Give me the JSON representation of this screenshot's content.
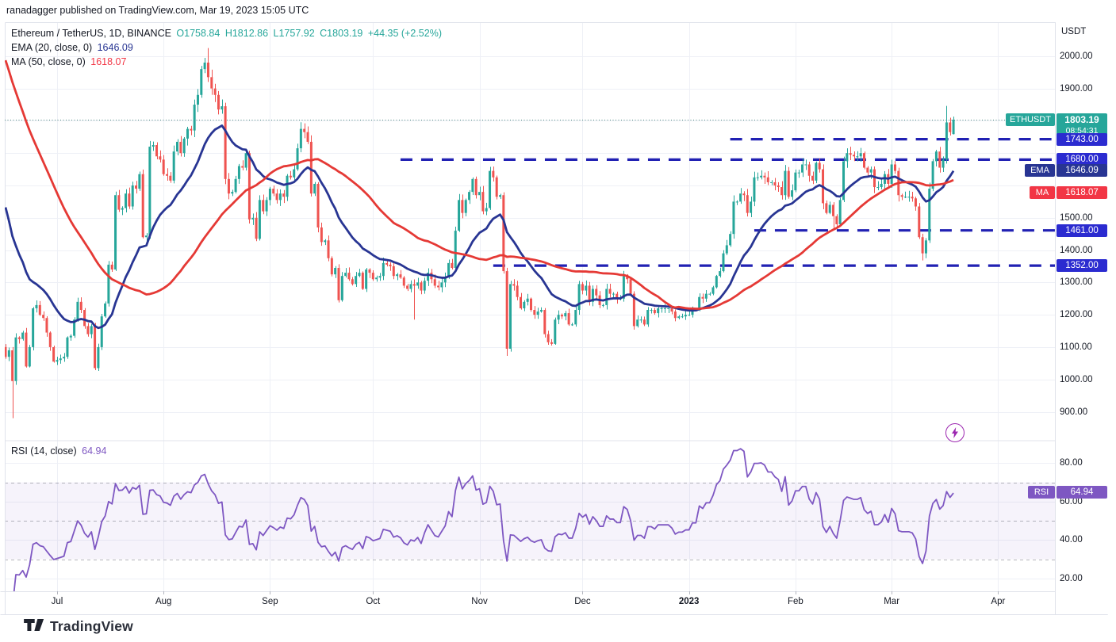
{
  "attribution": "ranadagger published on TradingView.com, Mar 19, 2023 15:05 UTC",
  "watermark": "TradingView",
  "axis": {
    "currency": "USDT"
  },
  "legend": {
    "symbol": "Ethereum / TetherUS, 1D, BINANCE",
    "open": "O1758.84",
    "high": "H1812.86",
    "low": "L1757.92",
    "close": "C1803.19",
    "change": "+44.35 (+2.52%)",
    "ema_label": "EMA (20, close, 0)",
    "ema_value": "1646.09",
    "ma_label": "MA (50, close, 0)",
    "ma_value": "1618.07",
    "rsi_label": "RSI (14, close)",
    "rsi_value": "64.94"
  },
  "badges": {
    "symbol_tag": "ETHUSDT",
    "last_price": "1803.19",
    "countdown": "08:54:31",
    "levels": [
      "1743.00",
      "1680.00",
      "1461.00",
      "1352.00"
    ],
    "ema_tag": "EMA",
    "ema_value": "1646.09",
    "ma_tag": "MA",
    "ma_value": "1618.07",
    "rsi_tag": "RSI",
    "rsi_value": "64.94"
  },
  "chart_data": {
    "type": "candlestick",
    "title": "Ethereum / TetherUS, 1D, BINANCE",
    "interval": "1D",
    "quote_currency": "USDT",
    "last_bar": {
      "open": 1758.84,
      "high": 1812.86,
      "low": 1757.92,
      "close": 1803.19,
      "change": 44.35,
      "change_pct": 2.52
    },
    "indicators": {
      "ema20": 1646.09,
      "ma50": 1618.07,
      "rsi14": 64.94
    },
    "price_line": 1803.19,
    "ylim_price": [
      813,
      2105
    ],
    "price_ticks_labeled": [
      2000,
      1900,
      1500,
      1400,
      1300,
      1200,
      1100,
      1000,
      900
    ],
    "price_grid": [
      900,
      1000,
      1100,
      1200,
      1300,
      1400,
      1500,
      1600,
      1700,
      1800,
      1900,
      2000
    ],
    "ylim_rsi": [
      13.3,
      91.7
    ],
    "rsi_ticks": [
      80,
      60,
      40,
      20
    ],
    "rsi_dashed_levels": [
      70,
      50,
      30
    ],
    "rsi_band": [
      30,
      70
    ],
    "levels": [
      {
        "label": "1743.00",
        "price": 1743.0,
        "from_day": 211
      },
      {
        "label": "1680.00",
        "price": 1680.0,
        "from_day": 115
      },
      {
        "label": "1461.00",
        "price": 1461.0,
        "from_day": 218
      },
      {
        "label": "1352.00",
        "price": 1352.0,
        "from_day": 142
      }
    ],
    "time_labels": [
      {
        "label": "Jul",
        "day": 15
      },
      {
        "label": "Aug",
        "day": 46
      },
      {
        "label": "Sep",
        "day": 77
      },
      {
        "label": "Oct",
        "day": 107
      },
      {
        "label": "Nov",
        "day": 138
      },
      {
        "label": "Dec",
        "day": 168
      },
      {
        "label": "2023",
        "day": 199,
        "bold": true
      },
      {
        "label": "Feb",
        "day": 230
      },
      {
        "label": "Mar",
        "day": 258
      },
      {
        "label": "Apr",
        "day": 289
      }
    ],
    "prehistory_closes": [
      2920,
      2880,
      2850,
      2820,
      2800,
      2780,
      2760,
      2900,
      2860,
      2830,
      2790,
      2750,
      2720,
      2680,
      2650,
      2620,
      2560,
      2520,
      2480,
      2440,
      2400,
      2380,
      2340,
      2300,
      2280,
      2260,
      2240,
      2200,
      2160,
      2120,
      2080,
      2040,
      2000,
      1980,
      1960,
      1970,
      1940,
      1920,
      1900,
      1880,
      1860,
      1840,
      1820,
      1800,
      1790,
      1810,
      1830,
      1790,
      1770,
      1750,
      1730,
      1700,
      1650,
      1580,
      1500,
      1420,
      1340,
      1260,
      1180,
      1100
    ],
    "closes": [
      1070,
      1090,
      995,
      1130,
      1125,
      1145,
      1040,
      1100,
      1220,
      1230,
      1200,
      1190,
      1145,
      1100,
      1055,
      1060,
      1065,
      1070,
      1130,
      1135,
      1185,
      1240,
      1215,
      1165,
      1140,
      1165,
      1035,
      1100,
      1195,
      1235,
      1355,
      1340,
      1570,
      1525,
      1530,
      1575,
      1535,
      1600,
      1590,
      1635,
      1440,
      1445,
      1720,
      1725,
      1690,
      1680,
      1635,
      1630,
      1615,
      1705,
      1735,
      1700,
      1745,
      1775,
      1770,
      1850,
      1880,
      1960,
      1980,
      1935,
      1900,
      1880,
      1835,
      1845,
      1620,
      1575,
      1580,
      1620,
      1660,
      1655,
      1700,
      1495,
      1500,
      1435,
      1555,
      1520,
      1555,
      1590,
      1575,
      1555,
      1575,
      1565,
      1630,
      1625,
      1650,
      1715,
      1775,
      1765,
      1735,
      1575,
      1605,
      1470,
      1425,
      1430,
      1375,
      1325,
      1345,
      1245,
      1320,
      1330,
      1310,
      1295,
      1320,
      1330,
      1280,
      1340,
      1330,
      1310,
      1315,
      1320,
      1360,
      1355,
      1350,
      1320,
      1325,
      1315,
      1290,
      1280,
      1295,
      1290,
      1300,
      1275,
      1305,
      1330,
      1310,
      1290,
      1285,
      1300,
      1315,
      1360,
      1345,
      1460,
      1555,
      1515,
      1555,
      1580,
      1620,
      1570,
      1580,
      1520,
      1530,
      1645,
      1625,
      1565,
      1570,
      1335,
      1095,
      1295,
      1290,
      1255,
      1220,
      1240,
      1250,
      1215,
      1200,
      1210,
      1215,
      1140,
      1115,
      1110,
      1185,
      1200,
      1195,
      1205,
      1170,
      1170,
      1215,
      1295,
      1275,
      1290,
      1240,
      1280,
      1260,
      1230,
      1230,
      1280,
      1265,
      1265,
      1250,
      1250,
      1320,
      1310,
      1265,
      1165,
      1185,
      1185,
      1170,
      1215,
      1215,
      1205,
      1220,
      1220,
      1220,
      1220,
      1210,
      1190,
      1195,
      1195,
      1200,
      1200,
      1215,
      1215,
      1255,
      1250,
      1265,
      1265,
      1285,
      1320,
      1335,
      1390,
      1415,
      1450,
      1550,
      1550,
      1575,
      1570,
      1515,
      1550,
      1625,
      1625,
      1630,
      1625,
      1610,
      1610,
      1600,
      1595,
      1570,
      1645,
      1565,
      1585,
      1640,
      1640,
      1665,
      1665,
      1630,
      1615,
      1670,
      1650,
      1545,
      1515,
      1540,
      1505,
      1480,
      1555,
      1675,
      1700,
      1695,
      1690,
      1690,
      1700,
      1655,
      1640,
      1650,
      1595,
      1595,
      1605,
      1635,
      1605,
      1665,
      1645,
      1570,
      1565,
      1565,
      1565,
      1560,
      1535,
      1440,
      1390,
      1430,
      1590,
      1675,
      1705,
      1655,
      1680,
      1795,
      1765,
      1803.19
    ],
    "wick_overrides": {
      "2": {
        "low": 880
      },
      "59": {
        "high": 2025
      },
      "87": {
        "high": 1792
      },
      "119": {
        "low": 1185
      },
      "146": {
        "low": 1073
      },
      "241": {
        "low": 1461
      },
      "267": {
        "low": 1368
      },
      "274": {
        "high": 1846
      },
      "276": {
        "open": 1758.84,
        "high": 1812.86,
        "low": 1757.92
      }
    }
  },
  "colors": {
    "up": "#26a69a",
    "down": "#ef5350",
    "ema": "#283593",
    "ma": "#e53935",
    "level_line": "#2121b3",
    "level_badge": "#2b2bd0",
    "rsi": "#7e57c2",
    "rsi_band_fill": "rgba(126,87,194,0.07)",
    "grid": "#eef0f6",
    "border": "#e0e3eb",
    "price_line": "#4d8a80"
  }
}
